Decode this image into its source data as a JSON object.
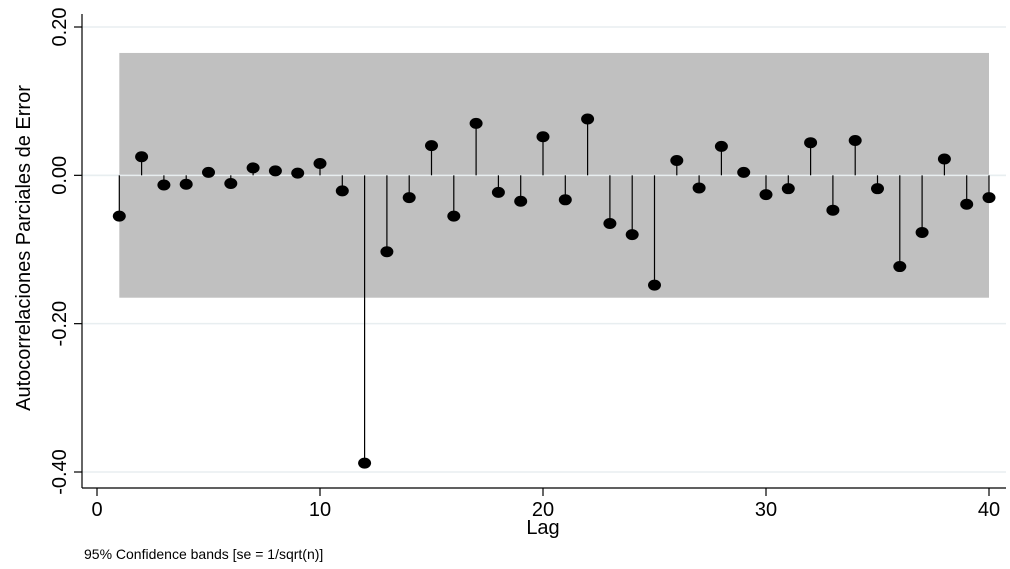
{
  "chart_data": {
    "type": "scatter",
    "subtype": "partial-autocorrelation-spike-plot",
    "xlabel": "Lag",
    "ylabel": "Autocorrelaciones Parciales de Error",
    "note": "95% Confidence bands [se = 1/sqrt(n)]",
    "xlim": [
      0,
      40
    ],
    "ylim": [
      -0.4,
      0.2
    ],
    "x_ticks": [
      0,
      10,
      20,
      30,
      40
    ],
    "y_ticks": [
      -0.4,
      -0.2,
      0.0,
      0.2
    ],
    "y_tick_labels": [
      "-0.40",
      "-0.20",
      "0.00",
      "0.20"
    ],
    "grid": true,
    "confidence_band": {
      "lower": -0.165,
      "upper": 0.165,
      "from_lag": 1,
      "to_lag": 40,
      "color": "#c0c0c0"
    },
    "marker_color": "#000000",
    "lags": [
      1,
      2,
      3,
      4,
      5,
      6,
      7,
      8,
      9,
      10,
      11,
      12,
      13,
      14,
      15,
      16,
      17,
      18,
      19,
      20,
      21,
      22,
      23,
      24,
      25,
      26,
      27,
      28,
      29,
      30,
      31,
      32,
      33,
      34,
      35,
      36,
      37,
      38,
      39,
      40
    ],
    "values": [
      -0.055,
      0.025,
      -0.013,
      -0.012,
      0.004,
      -0.011,
      0.01,
      0.006,
      0.003,
      0.016,
      -0.021,
      -0.388,
      -0.103,
      -0.03,
      0.04,
      -0.055,
      0.07,
      -0.023,
      -0.035,
      0.052,
      -0.033,
      0.076,
      -0.065,
      -0.08,
      -0.148,
      0.02,
      -0.017,
      0.039,
      0.004,
      -0.026,
      -0.018,
      0.044,
      -0.047,
      0.047,
      -0.018,
      -0.123,
      -0.077,
      0.022,
      -0.039,
      -0.03
    ]
  }
}
